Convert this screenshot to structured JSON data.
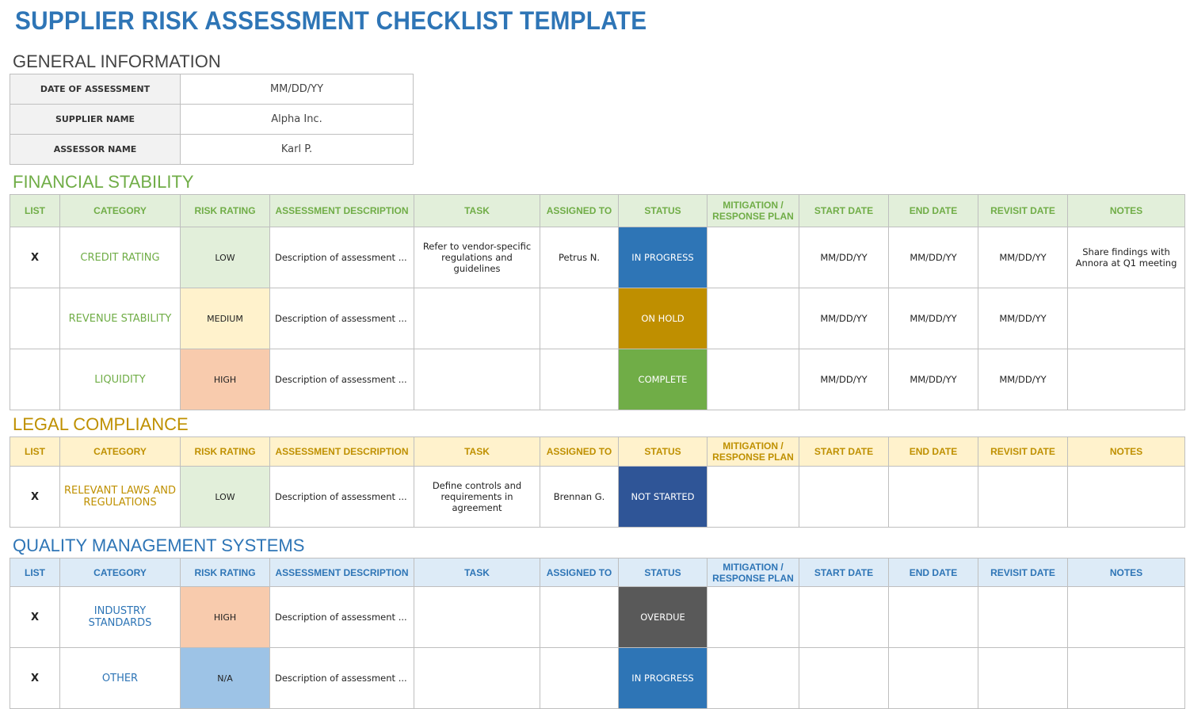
{
  "title": "SUPPLIER RISK ASSESSMENT CHECKLIST TEMPLATE",
  "general": {
    "heading": "GENERAL INFORMATION",
    "rows": [
      {
        "label": "DATE OF ASSESSMENT",
        "value": "MM/DD/YY"
      },
      {
        "label": "SUPPLIER NAME",
        "value": "Alpha Inc."
      },
      {
        "label": "ASSESSOR NAME",
        "value": "Karl P."
      }
    ]
  },
  "columns": [
    "LIST",
    "CATEGORY",
    "RISK RATING",
    "ASSESSMENT DESCRIPTION",
    "TASK",
    "ASSIGNED TO",
    "STATUS",
    "MITIGATION / RESPONSE PLAN",
    "START DATE",
    "END DATE",
    "REVISIT DATE",
    "NOTES"
  ],
  "risk_colors": {
    "LOW": "#E2EFDA",
    "MEDIUM": "#FFF2CC",
    "HIGH": "#F8CBAD",
    "N/A": "#9DC3E6"
  },
  "status_colors": {
    "IN PROGRESS": "#2E75B6",
    "ON HOLD": "#BF8F00",
    "COMPLETE": "#70AD47",
    "NOT STARTED": "#2F5597",
    "OVERDUE": "#595959"
  },
  "sections": [
    {
      "heading": "FINANCIAL STABILITY",
      "accent": "#70AD47",
      "header_bg": "#E2EFDA",
      "rows": [
        {
          "list": "X",
          "category": "CREDIT RATING",
          "risk": "LOW",
          "description": "Description of assessment ...",
          "task": "Refer to vendor-specific regulations and guidelines",
          "assigned": "Petrus N.",
          "status": "IN PROGRESS",
          "mitigation": "",
          "start": "MM/DD/YY",
          "end": "MM/DD/YY",
          "revisit": "MM/DD/YY",
          "notes": "Share findings with Annora at Q1 meeting"
        },
        {
          "list": "",
          "category": "REVENUE STABILITY",
          "risk": "MEDIUM",
          "description": "Description of assessment ...",
          "task": "",
          "assigned": "",
          "status": "ON HOLD",
          "mitigation": "",
          "start": "MM/DD/YY",
          "end": "MM/DD/YY",
          "revisit": "MM/DD/YY",
          "notes": ""
        },
        {
          "list": "",
          "category": "LIQUIDITY",
          "risk": "HIGH",
          "description": "Description of assessment ...",
          "task": "",
          "assigned": "",
          "status": "COMPLETE",
          "mitigation": "",
          "start": "MM/DD/YY",
          "end": "MM/DD/YY",
          "revisit": "MM/DD/YY",
          "notes": ""
        }
      ]
    },
    {
      "heading": "LEGAL COMPLIANCE",
      "accent": "#BF9000",
      "header_bg": "#FFF2CC",
      "rows": [
        {
          "list": "X",
          "category": "RELEVANT LAWS AND REGULATIONS",
          "risk": "LOW",
          "description": "Description of assessment ...",
          "task": "Define controls and requirements in agreement",
          "assigned": "Brennan G.",
          "status": "NOT STARTED",
          "mitigation": "",
          "start": "",
          "end": "",
          "revisit": "",
          "notes": ""
        }
      ]
    },
    {
      "heading": "QUALITY MANAGEMENT SYSTEMS",
      "accent": "#2E75B6",
      "header_bg": "#DDEBF7",
      "rows": [
        {
          "list": "X",
          "category": "INDUSTRY STANDARDS",
          "risk": "HIGH",
          "description": "Description of assessment ...",
          "task": "",
          "assigned": "",
          "status": "OVERDUE",
          "mitigation": "",
          "start": "",
          "end": "",
          "revisit": "",
          "notes": ""
        },
        {
          "list": "X",
          "category": "OTHER",
          "risk": "N/A",
          "description": "Description of assessment ...",
          "task": "",
          "assigned": "",
          "status": "IN PROGRESS",
          "mitigation": "",
          "start": "",
          "end": "",
          "revisit": "",
          "notes": ""
        }
      ]
    }
  ]
}
